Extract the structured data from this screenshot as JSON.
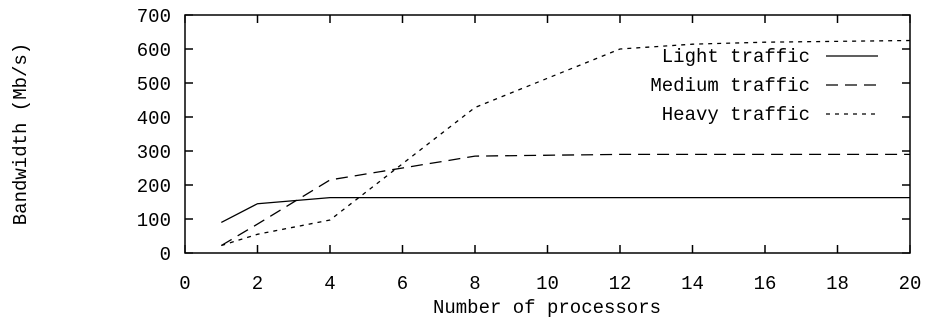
{
  "chart_data": {
    "type": "line",
    "xlabel": "Number of processors",
    "ylabel": "Bandwidth (Mb/s)",
    "xlim": [
      0,
      20
    ],
    "ylim": [
      0,
      700
    ],
    "xticks": [
      "0",
      "2",
      "4",
      "6",
      "8",
      "10",
      "12",
      "14",
      "16",
      "18",
      "20"
    ],
    "yticks": [
      "0",
      "100",
      "200",
      "300",
      "400",
      "500",
      "600",
      "700"
    ],
    "grid": false,
    "legend_position": "top-right",
    "series": [
      {
        "name": "Light traffic",
        "line_style": "solid",
        "x": [
          1,
          2,
          4,
          8,
          12,
          16,
          20
        ],
        "y": [
          90,
          145,
          163,
          163,
          163,
          163,
          163
        ]
      },
      {
        "name": "Medium traffic",
        "line_style": "dashed",
        "x": [
          1,
          2,
          4,
          8,
          12,
          16,
          20
        ],
        "y": [
          22,
          85,
          215,
          285,
          290,
          290,
          290
        ]
      },
      {
        "name": "Heavy traffic",
        "line_style": "dotted",
        "x": [
          1,
          2,
          4,
          8,
          12,
          14,
          16,
          20
        ],
        "y": [
          22,
          55,
          97,
          428,
          600,
          614,
          620,
          625
        ]
      }
    ]
  }
}
